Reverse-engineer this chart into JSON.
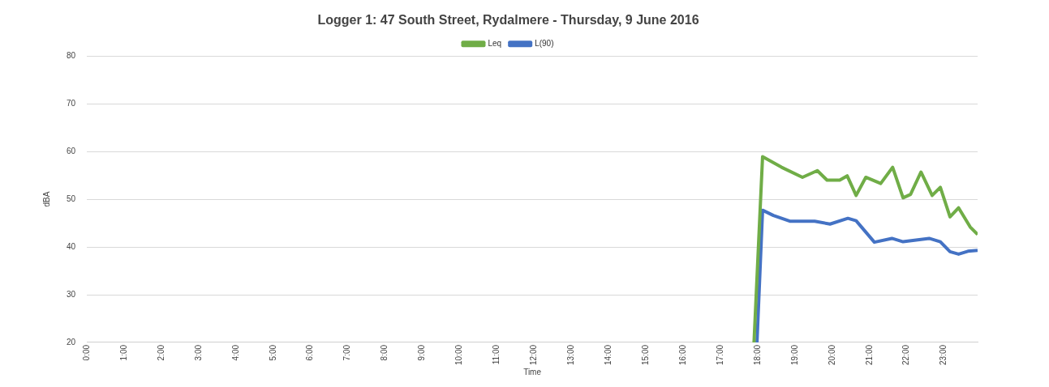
{
  "chart_data": {
    "type": "line",
    "title": "Logger 1: 47 South Street, Rydalmere - Thursday, 9 June 2016",
    "xlabel": "Time",
    "ylabel": "dBA",
    "xlim": [
      0,
      23.9
    ],
    "xticks": [
      {
        "value": 0,
        "label": "0:00"
      },
      {
        "value": 1,
        "label": "1:00"
      },
      {
        "value": 2,
        "label": "2:00"
      },
      {
        "value": 3,
        "label": "3:00"
      },
      {
        "value": 4,
        "label": "4:00"
      },
      {
        "value": 5,
        "label": "5:00"
      },
      {
        "value": 6,
        "label": "6:00"
      },
      {
        "value": 7,
        "label": "7:00"
      },
      {
        "value": 8,
        "label": "8:00"
      },
      {
        "value": 9,
        "label": "9:00"
      },
      {
        "value": 10,
        "label": "10:00"
      },
      {
        "value": 11,
        "label": "11:00"
      },
      {
        "value": 12,
        "label": "12:00"
      },
      {
        "value": 13,
        "label": "13:00"
      },
      {
        "value": 14,
        "label": "14:00"
      },
      {
        "value": 15,
        "label": "15:00"
      },
      {
        "value": 16,
        "label": "16:00"
      },
      {
        "value": 17,
        "label": "17:00"
      },
      {
        "value": 18,
        "label": "18:00"
      },
      {
        "value": 19,
        "label": "19:00"
      },
      {
        "value": 20,
        "label": "20:00"
      },
      {
        "value": 21,
        "label": "21:00"
      },
      {
        "value": 22,
        "label": "22:00"
      },
      {
        "value": 23,
        "label": "23:00"
      }
    ],
    "ylim": [
      20,
      80
    ],
    "yticks": [
      20,
      30,
      40,
      50,
      60,
      70,
      80
    ],
    "grid": "y",
    "legend": "top",
    "marker": "none",
    "line_style": "solid",
    "series": [
      {
        "name": "Leq",
        "color": "#70ad47",
        "x": [
          17.9,
          18.13,
          18.64,
          19.2,
          19.6,
          19.86,
          20.2,
          20.4,
          20.64,
          20.9,
          21.3,
          21.62,
          21.9,
          22.1,
          22.38,
          22.68,
          22.9,
          23.16,
          23.39,
          23.7,
          23.9
        ],
        "values": [
          20,
          58.9,
          56.7,
          54.6,
          56.0,
          54.0,
          54.0,
          54.9,
          50.8,
          54.6,
          53.3,
          56.7,
          50.3,
          51.0,
          55.7,
          50.8,
          52.5,
          46.3,
          48.2,
          44.2,
          42.6
        ]
      },
      {
        "name": "L(90)",
        "color": "#4472c4",
        "x": [
          17.98,
          18.13,
          18.42,
          18.86,
          19.53,
          19.94,
          20.42,
          20.64,
          21.13,
          21.6,
          21.9,
          22.6,
          22.9,
          23.16,
          23.39,
          23.64,
          23.9
        ],
        "values": [
          20,
          47.7,
          46.6,
          45.4,
          45.4,
          44.8,
          46.0,
          45.5,
          41.0,
          41.8,
          41.1,
          41.8,
          41.1,
          39.0,
          38.5,
          39.1,
          39.3
        ]
      }
    ]
  }
}
